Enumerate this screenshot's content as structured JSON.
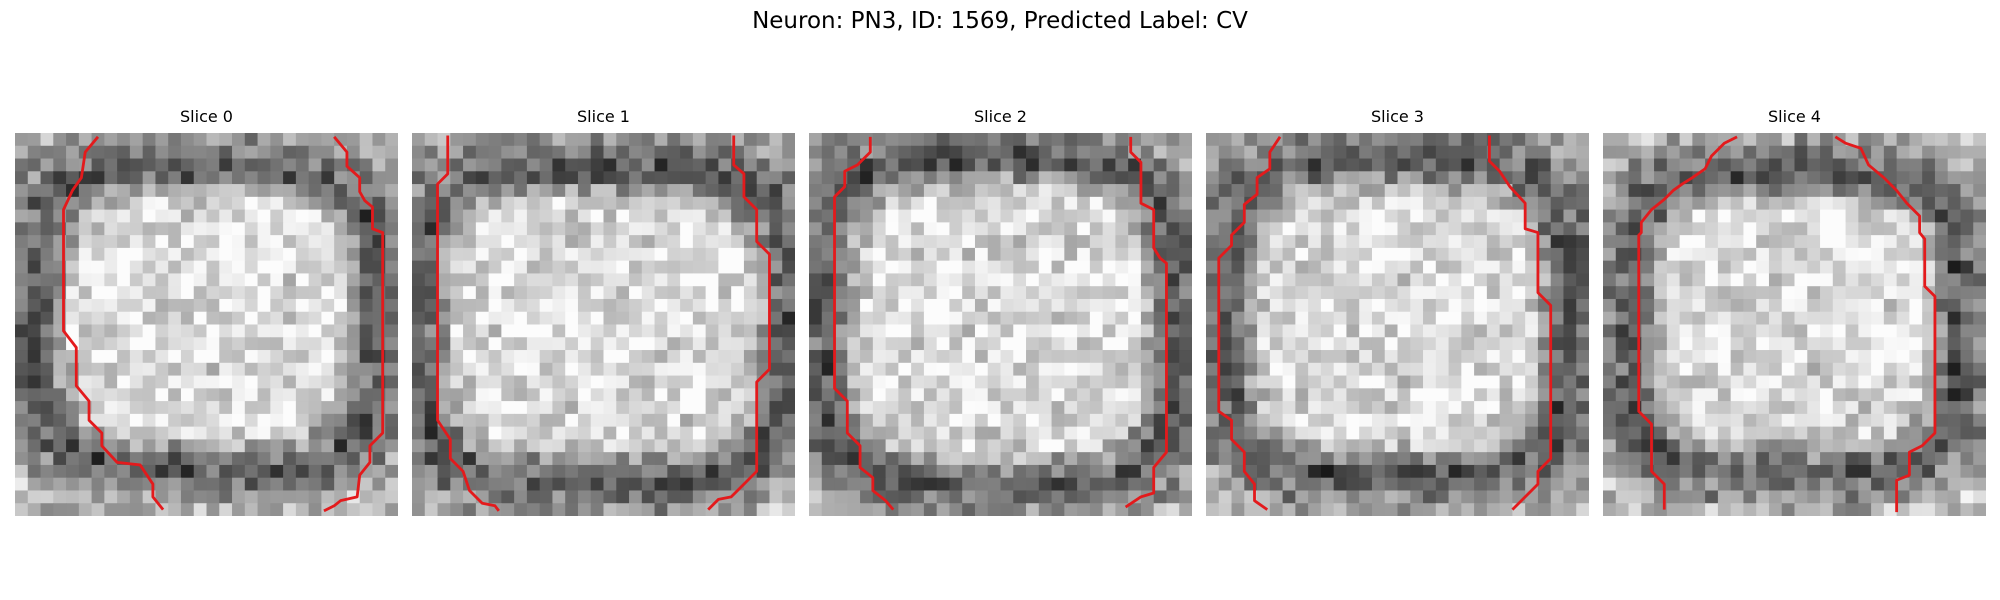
{
  "figure": {
    "title": "Neuron: PN3, ID: 1569, Predicted Label: CV"
  },
  "colors": {
    "contour": "#e31a1c",
    "background": "#ffffff",
    "colormap": "grayscale"
  },
  "slices": [
    {
      "title": "Slice 0",
      "index": 0
    },
    {
      "title": "Slice 1",
      "index": 1
    },
    {
      "title": "Slice 2",
      "index": 2
    },
    {
      "title": "Slice 3",
      "index": 3
    },
    {
      "title": "Slice 4",
      "index": 4
    }
  ]
}
